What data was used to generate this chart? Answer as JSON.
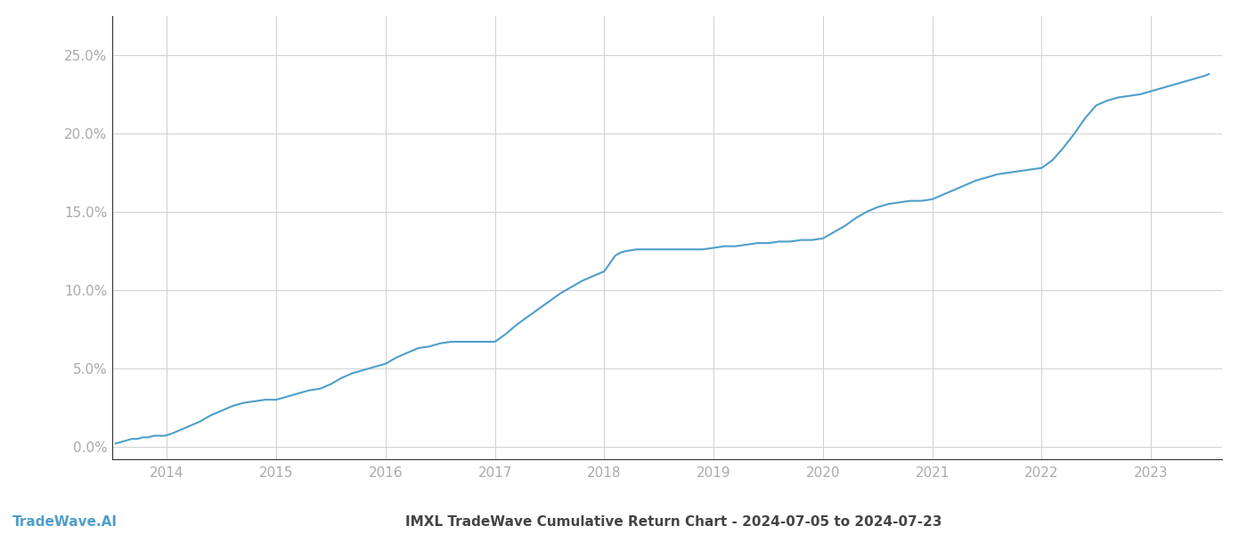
{
  "title": "IMXL TradeWave Cumulative Return Chart - 2024-07-05 to 2024-07-23",
  "watermark": "TradeWave.AI",
  "line_color": "#4f9eca",
  "background_color": "#ffffff",
  "grid_color": "#d0d0d0",
  "x_data": [
    2013.53,
    2013.58,
    2013.63,
    2013.68,
    2013.73,
    2013.78,
    2013.83,
    2013.88,
    2013.93,
    2013.98,
    2014.03,
    2014.1,
    2014.2,
    2014.3,
    2014.4,
    2014.5,
    2014.6,
    2014.7,
    2014.8,
    2014.9,
    2015.0,
    2015.1,
    2015.2,
    2015.3,
    2015.4,
    2015.5,
    2015.6,
    2015.7,
    2015.8,
    2015.9,
    2016.0,
    2016.1,
    2016.2,
    2016.3,
    2016.4,
    2016.5,
    2016.6,
    2016.7,
    2016.8,
    2016.9,
    2017.0,
    2017.1,
    2017.2,
    2017.3,
    2017.4,
    2017.5,
    2017.6,
    2017.7,
    2017.8,
    2017.9,
    2018.0,
    2018.05,
    2018.1,
    2018.15,
    2018.2,
    2018.3,
    2018.4,
    2018.5,
    2018.6,
    2018.7,
    2018.8,
    2018.9,
    2019.0,
    2019.1,
    2019.2,
    2019.3,
    2019.4,
    2019.5,
    2019.6,
    2019.7,
    2019.8,
    2019.9,
    2020.0,
    2020.1,
    2020.2,
    2020.3,
    2020.4,
    2020.5,
    2020.6,
    2020.7,
    2020.8,
    2020.9,
    2021.0,
    2021.1,
    2021.2,
    2021.3,
    2021.4,
    2021.5,
    2021.6,
    2021.7,
    2021.8,
    2021.9,
    2022.0,
    2022.1,
    2022.2,
    2022.3,
    2022.4,
    2022.5,
    2022.6,
    2022.7,
    2022.8,
    2022.9,
    2023.0,
    2023.1,
    2023.2,
    2023.3,
    2023.4,
    2023.5,
    2023.53
  ],
  "y_data": [
    0.002,
    0.003,
    0.004,
    0.005,
    0.005,
    0.006,
    0.006,
    0.007,
    0.007,
    0.007,
    0.008,
    0.01,
    0.013,
    0.016,
    0.02,
    0.023,
    0.026,
    0.028,
    0.029,
    0.03,
    0.03,
    0.032,
    0.034,
    0.036,
    0.037,
    0.04,
    0.044,
    0.047,
    0.049,
    0.051,
    0.053,
    0.057,
    0.06,
    0.063,
    0.064,
    0.066,
    0.067,
    0.067,
    0.067,
    0.067,
    0.067,
    0.072,
    0.078,
    0.083,
    0.088,
    0.093,
    0.098,
    0.102,
    0.106,
    0.109,
    0.112,
    0.117,
    0.122,
    0.124,
    0.125,
    0.126,
    0.126,
    0.126,
    0.126,
    0.126,
    0.126,
    0.126,
    0.127,
    0.128,
    0.128,
    0.129,
    0.13,
    0.13,
    0.131,
    0.131,
    0.132,
    0.132,
    0.133,
    0.137,
    0.141,
    0.146,
    0.15,
    0.153,
    0.155,
    0.156,
    0.157,
    0.157,
    0.158,
    0.161,
    0.164,
    0.167,
    0.17,
    0.172,
    0.174,
    0.175,
    0.176,
    0.177,
    0.178,
    0.183,
    0.191,
    0.2,
    0.21,
    0.218,
    0.221,
    0.223,
    0.224,
    0.225,
    0.227,
    0.229,
    0.231,
    0.233,
    0.235,
    0.237,
    0.238
  ],
  "ylim": [
    -0.008,
    0.275
  ],
  "xlim": [
    2013.5,
    2023.65
  ],
  "yticks": [
    0.0,
    0.05,
    0.1,
    0.15,
    0.2,
    0.25
  ],
  "xtick_labels": [
    "2014",
    "2015",
    "2016",
    "2017",
    "2018",
    "2019",
    "2020",
    "2021",
    "2022",
    "2023"
  ],
  "xtick_positions": [
    2014,
    2015,
    2016,
    2017,
    2018,
    2019,
    2020,
    2021,
    2022,
    2023
  ],
  "line_width": 1.5,
  "tick_label_color": "#aaaaaa",
  "title_color": "#444444",
  "watermark_color": "#4f9eca",
  "title_fontsize": 11,
  "tick_fontsize": 11,
  "watermark_fontsize": 11
}
